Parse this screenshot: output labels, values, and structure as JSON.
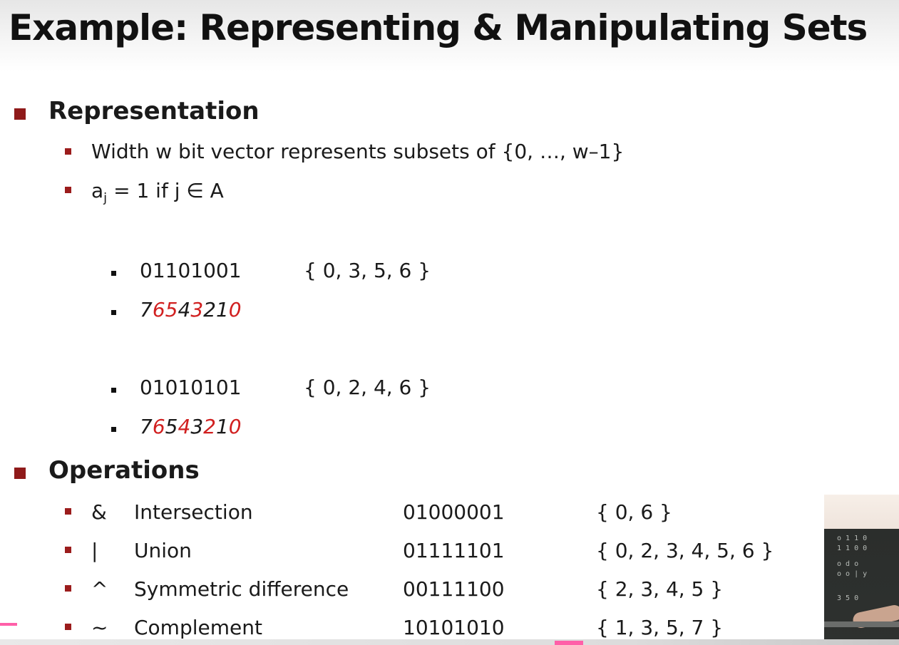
{
  "slide": {
    "title": "Example: Representing & Manipulating Sets",
    "representation": {
      "heading": "Representation",
      "bullet1": "Width w bit vector represents subsets of {0, …, w–1}",
      "bullet2_a": "a",
      "bullet2_sub": "j",
      "bullet2_rest": " = 1 if j  ∈ A",
      "example1": {
        "bits": "01101001",
        "set": "{ 0, 3, 5, 6 }",
        "index": [
          "7",
          "6",
          "5",
          "4",
          "3",
          "2",
          "1",
          "0"
        ]
      },
      "example2": {
        "bits": "01010101",
        "set": "{ 0, 2, 4, 6 }",
        "index": [
          "7",
          "6",
          "5",
          "4",
          "3",
          "2",
          "1",
          "0"
        ]
      }
    },
    "operations": {
      "heading": "Operations",
      "rows": [
        {
          "symbol": "&",
          "name": "Intersection",
          "bits": "01000001",
          "set": "{ 0, 6 }"
        },
        {
          "symbol": "|",
          "name": "Union",
          "bits": "01111101",
          "set": "{ 0, 2, 3, 4, 5, 6 }"
        },
        {
          "symbol": "^",
          "name": "Symmetric difference",
          "bits": "00111100",
          "set": "{ 2, 3, 4, 5 }"
        },
        {
          "symbol": "~",
          "name": "Complement",
          "bits": "10101010",
          "set": "{ 1, 3, 5, 7 }"
        }
      ]
    }
  },
  "colors": {
    "bullet": "#8f1a1a",
    "highlight_digit": "#d12020"
  }
}
